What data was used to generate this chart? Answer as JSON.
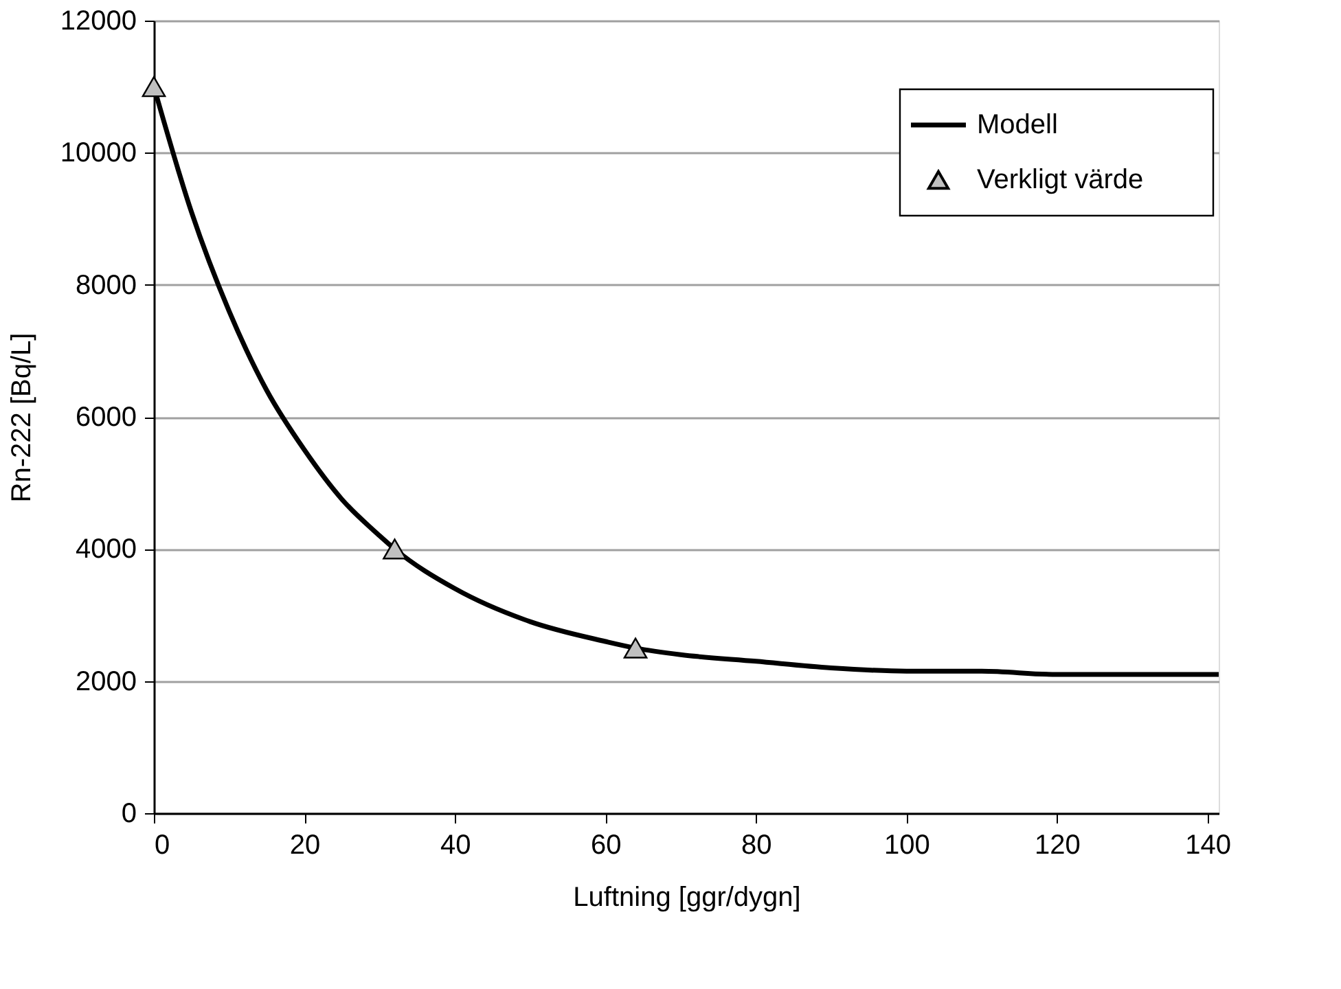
{
  "chart_data": {
    "type": "line",
    "xlabel": "Luftning [ggr/dygn]",
    "ylabel": "Rn-222 [Bq/L]",
    "xlim": [
      0,
      141.5
    ],
    "xticks": [
      0,
      20,
      40,
      60,
      80,
      100,
      120,
      140
    ],
    "ylim": [
      0,
      12000
    ],
    "yticks": [
      0,
      2000,
      4000,
      6000,
      8000,
      10000,
      12000
    ],
    "grid": "y",
    "legend": "top right",
    "series": [
      {
        "name": "Modell",
        "color": "#000000",
        "marker": "none",
        "line_style": "solid",
        "x": [
          0,
          5,
          10,
          15,
          20,
          25,
          30,
          32,
          40,
          50,
          60,
          64,
          70,
          80,
          90,
          100,
          110,
          120,
          130,
          141.5
        ],
        "values": [
          11000,
          9100,
          7600,
          6400,
          5500,
          4750,
          4200,
          4000,
          3400,
          2900,
          2600,
          2500,
          2400,
          2300,
          2200,
          2150,
          2150,
          2100,
          2100,
          2100
        ]
      },
      {
        "name": "Verkligt värde",
        "type": "scatter",
        "color": "#c0c0c0",
        "marker": "triangle",
        "x": [
          0,
          32,
          64
        ],
        "values": [
          11000,
          4000,
          2500
        ]
      }
    ]
  }
}
